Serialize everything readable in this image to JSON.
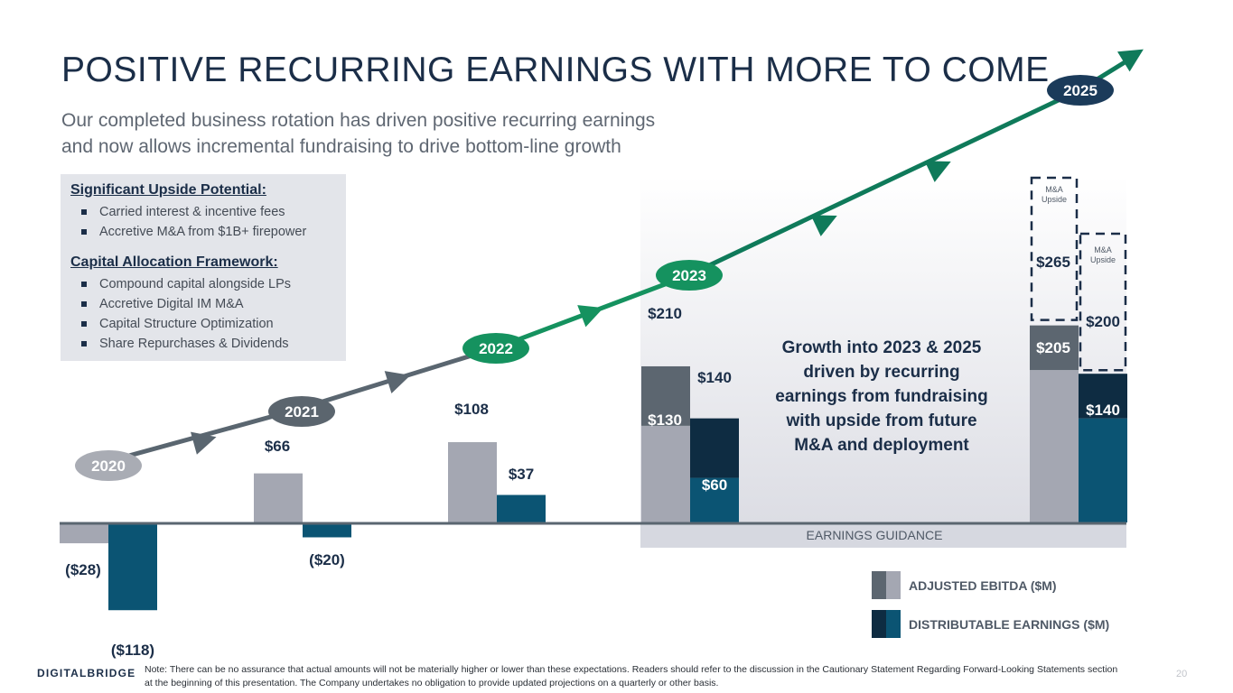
{
  "slide": {
    "title": "POSITIVE RECURRING EARNINGS WITH MORE TO COME",
    "subtitle_line1": "Our completed business rotation has driven positive recurring earnings",
    "subtitle_line2": "and now allows incremental fundraising to drive bottom-line growth",
    "page_number": "20",
    "logo": "DIGITALBRIDGE",
    "note": "Note: There can be no assurance that actual amounts will not be materially higher or lower than these expectations.  Readers should refer to the discussion in the Cautionary Statement Regarding Forward-Looking Statements section at the beginning of this presentation. The Company undertakes no obligation to provide updated projections on a quarterly or other basis."
  },
  "upside_box": {
    "heading1": "Significant Upside Potential:",
    "items1": [
      "Carried interest & incentive fees",
      "Accretive M&A from $1B+ firepower"
    ],
    "heading2": "Capital Allocation Framework:",
    "items2": [
      "Compound capital alongside LPs",
      "Accretive Digital IM M&A",
      "Capital Structure Optimization",
      "Share Repurchases & Dividends"
    ]
  },
  "colors": {
    "navy": "#1b2e48",
    "ebitda_light": "#a4a7b2",
    "ebitda_dark": "#5c6670",
    "de_light": "#0b5473",
    "de_dark": "#0e2c42",
    "arrow_gray": "#5a6670",
    "arrow_green": "#0f7a5a",
    "badge_2020": "#a9acb4",
    "badge_2021": "#5b656e",
    "badge_green": "#15925f",
    "badge_navy": "#1b3b5a"
  },
  "chart_data": {
    "type": "bar",
    "units": "$M",
    "categories": [
      "2020",
      "2021",
      "2022",
      "2023",
      "2025"
    ],
    "series": [
      {
        "name": "ADJUSTED EBITDA ($M)",
        "values": [
          -28,
          66,
          108,
          210,
          265
        ],
        "base_values": [
          -28,
          66,
          108,
          130,
          205
        ],
        "labels": [
          "($28)",
          "$66",
          "$108",
          "$210",
          "$265"
        ],
        "base_labels": [
          "",
          "",
          "",
          "$130",
          "$205"
        ]
      },
      {
        "name": "DISTRIBUTABLE EARNINGS ($M)",
        "values": [
          -118,
          -20,
          37,
          140,
          200
        ],
        "base_values": [
          -118,
          -20,
          37,
          60,
          140
        ],
        "labels": [
          "($118)",
          "($20)",
          "$37",
          "$140",
          "$200"
        ],
        "base_labels": [
          "",
          "",
          "",
          "$60",
          "$140"
        ]
      }
    ],
    "upside_label": "M&A Upside",
    "guidance_label": "EARNINGS GUIDANCE",
    "callout_lines": [
      "Growth into 2023 & 2025",
      "driven by recurring",
      "earnings from fundraising",
      "with upside from future",
      "M&A and deployment"
    ],
    "legend": [
      "ADJUSTED EBITDA ($M)",
      "DISTRIBUTABLE EARNINGS ($M)"
    ],
    "year_badges": [
      "2020",
      "2021",
      "2022",
      "2023",
      "2025"
    ],
    "ylim": [
      -118,
      265
    ]
  }
}
